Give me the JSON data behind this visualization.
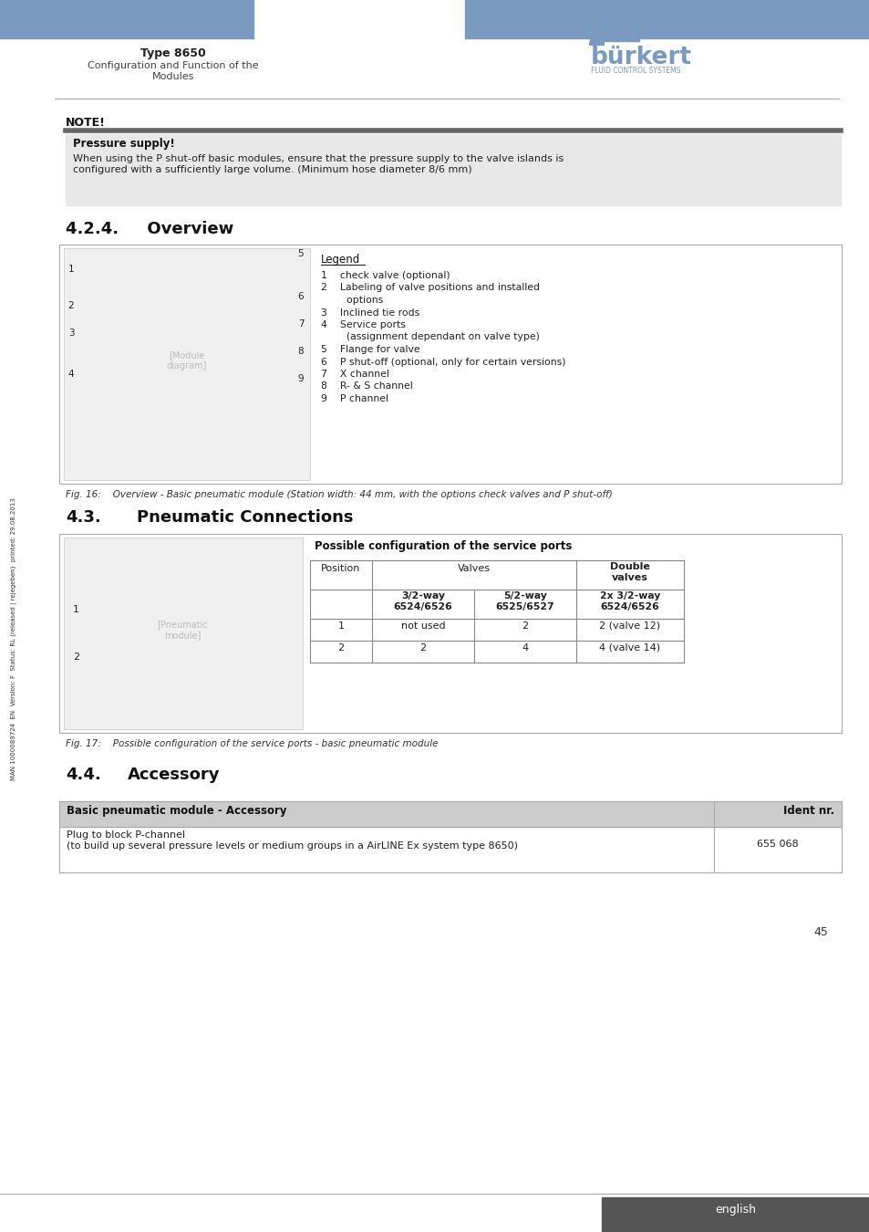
{
  "header_blue": "#7A9BBF",
  "title_text": "Type 8650",
  "subtitle_text": "Configuration and Function of the\nModules",
  "burkert_color": "#7A9BBF",
  "note_title": "NOTE!",
  "note_heading": "Pressure supply!",
  "note_body": "When using the P shut-off basic modules, ensure that the pressure supply to the valve islands is\nconfigured with a sufficiently large volume. (Minimum hose diameter 8/6 mm)",
  "section_424": "4.2.4.     Overview",
  "legend_title": "Legend",
  "legend_items": [
    "1    check valve (optional)",
    "2    Labeling of valve positions and installed",
    "        options",
    "3    Inclined tie rods",
    "4    Service ports",
    "        (assignment dependant on valve type)",
    "5    Flange for valve",
    "6    P shut-off (optional, only for certain versions)",
    "7    X channel",
    "8    R- & S channel",
    "9    P channel"
  ],
  "fig16_caption": "Fig. 16:    Overview - Basic pneumatic module (Station width: 44 mm, with the options check valves and P shut-off)",
  "section_43": "4.3.",
  "section_43_name": "Pneumatic Connections",
  "table_title": "Possible configuration of the service ports",
  "fig17_caption": "Fig. 17:    Possible configuration of the service ports - basic pneumatic module",
  "section_44": "4.4.",
  "section_44_name": "Accessory",
  "acc_header1": "Basic pneumatic module - Accessory",
  "acc_header2": "Ident nr.",
  "acc_row1a": "Plug to block P-channel",
  "acc_row1b": "(to build up several pressure levels or medium groups in a AirLINE Ex system type 8650)",
  "acc_val1": "655 068",
  "page_number": "45",
  "footer_text": "english",
  "side_text": "MAN 1000089724  EN  Version: F  Status: RL (released | rejegeben)  printed: 29.08.2013"
}
